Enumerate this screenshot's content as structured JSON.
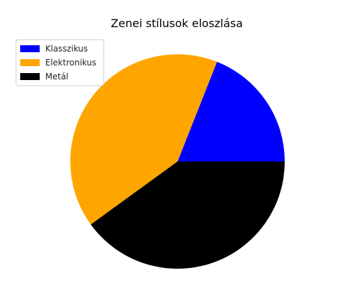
{
  "chart_data": {
    "type": "pie",
    "title": "Zenei stílusok eloszlása",
    "labels": [
      "Klasszikus",
      "Elektronikus",
      "Metál"
    ],
    "values": [
      19,
      41,
      40
    ],
    "colors": [
      "#0000ff",
      "#ffa500",
      "#000000"
    ],
    "start_angle_deg": 0,
    "direction": "counterclockwise",
    "legend": {
      "position": "upper-left",
      "entries": [
        "Klasszikus",
        "Elektronikus",
        "Metál"
      ]
    }
  }
}
